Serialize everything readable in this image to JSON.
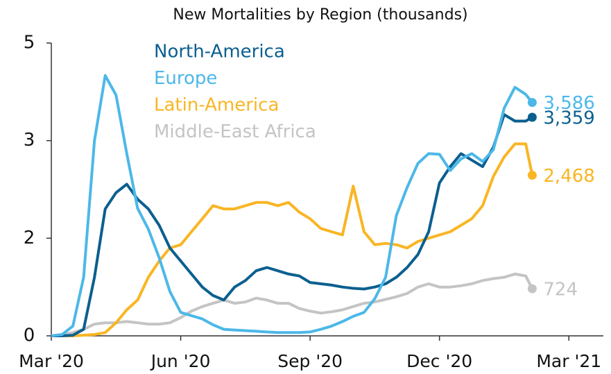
{
  "chart_data": {
    "type": "line",
    "title": "New Mortalities by Region (thousands)",
    "x": [
      0,
      0.25,
      0.5,
      0.75,
      1,
      1.25,
      1.5,
      1.75,
      2,
      2.25,
      2.5,
      2.75,
      3,
      3.25,
      3.5,
      3.75,
      4,
      4.25,
      4.5,
      4.75,
      5,
      5.25,
      5.5,
      5.75,
      6,
      6.25,
      6.5,
      6.75,
      7,
      7.25,
      7.5,
      7.75,
      8,
      8.25,
      8.5,
      8.75,
      9,
      9.25,
      9.5,
      9.75,
      10,
      10.25,
      10.5,
      10.75,
      11,
      11.15
    ],
    "series": [
      {
        "name": "North-America",
        "color": "#0b5f8f",
        "end_label": "3,359",
        "values": [
          0,
          0,
          0.01,
          0.1,
          0.9,
          1.95,
          2.2,
          2.33,
          2.1,
          1.95,
          1.7,
          1.35,
          1.15,
          0.95,
          0.75,
          0.62,
          0.55,
          0.75,
          0.85,
          1.0,
          1.05,
          1.0,
          0.95,
          0.92,
          0.82,
          0.8,
          0.78,
          0.75,
          0.73,
          0.72,
          0.75,
          0.8,
          0.9,
          1.05,
          1.25,
          1.6,
          2.35,
          2.6,
          2.8,
          2.7,
          2.6,
          2.9,
          3.4,
          3.3,
          3.3,
          3.359
        ]
      },
      {
        "name": "Europe",
        "color": "#4cb8e8",
        "end_label": "3,586",
        "values": [
          0,
          0.02,
          0.15,
          0.9,
          3.0,
          4.0,
          3.7,
          2.8,
          1.96,
          1.64,
          1.2,
          0.68,
          0.36,
          0.31,
          0.26,
          0.17,
          0.1,
          0.09,
          0.08,
          0.07,
          0.06,
          0.05,
          0.05,
          0.05,
          0.06,
          0.1,
          0.15,
          0.22,
          0.3,
          0.36,
          0.57,
          0.9,
          1.85,
          2.28,
          2.65,
          2.8,
          2.79,
          2.54,
          2.72,
          2.8,
          2.68,
          2.86,
          3.5,
          3.82,
          3.71,
          3.586
        ]
      },
      {
        "name": "Latin-America",
        "color": "#f9b523",
        "end_label": "2,468",
        "values": [
          0,
          0,
          0,
          0.01,
          0.02,
          0.05,
          0.2,
          0.4,
          0.55,
          0.9,
          1.15,
          1.35,
          1.4,
          1.6,
          1.8,
          2.0,
          1.95,
          1.95,
          2.0,
          2.05,
          2.05,
          2.0,
          2.05,
          1.9,
          1.8,
          1.65,
          1.6,
          1.55,
          2.3,
          1.6,
          1.4,
          1.42,
          1.4,
          1.35,
          1.45,
          1.5,
          1.55,
          1.6,
          1.7,
          1.8,
          2.0,
          2.45,
          2.75,
          2.95,
          2.95,
          2.468
        ]
      },
      {
        "name": "Middle-East Africa",
        "color": "#c4c4c4",
        "end_label": "724",
        "values": [
          0,
          0.02,
          0.05,
          0.1,
          0.18,
          0.2,
          0.2,
          0.22,
          0.2,
          0.18,
          0.18,
          0.2,
          0.28,
          0.38,
          0.45,
          0.5,
          0.55,
          0.5,
          0.52,
          0.58,
          0.55,
          0.5,
          0.5,
          0.42,
          0.38,
          0.35,
          0.37,
          0.4,
          0.45,
          0.5,
          0.52,
          0.56,
          0.6,
          0.65,
          0.75,
          0.8,
          0.75,
          0.75,
          0.77,
          0.8,
          0.85,
          0.88,
          0.9,
          0.95,
          0.92,
          0.724
        ]
      }
    ],
    "xlim": [
      0,
      12.8
    ],
    "xticks": [
      {
        "value": 0,
        "label": "Mar '20"
      },
      {
        "value": 3,
        "label": "Jun '20"
      },
      {
        "value": 6,
        "label": "Sep '20"
      },
      {
        "value": 9,
        "label": "Dec '20"
      },
      {
        "value": 12,
        "label": "Mar '21"
      }
    ],
    "ylim": [
      0,
      4.5
    ],
    "yticks": [
      0,
      {
        "value": 1.5,
        "label": "2"
      },
      3,
      {
        "value": 4.5,
        "label": "5"
      }
    ]
  }
}
